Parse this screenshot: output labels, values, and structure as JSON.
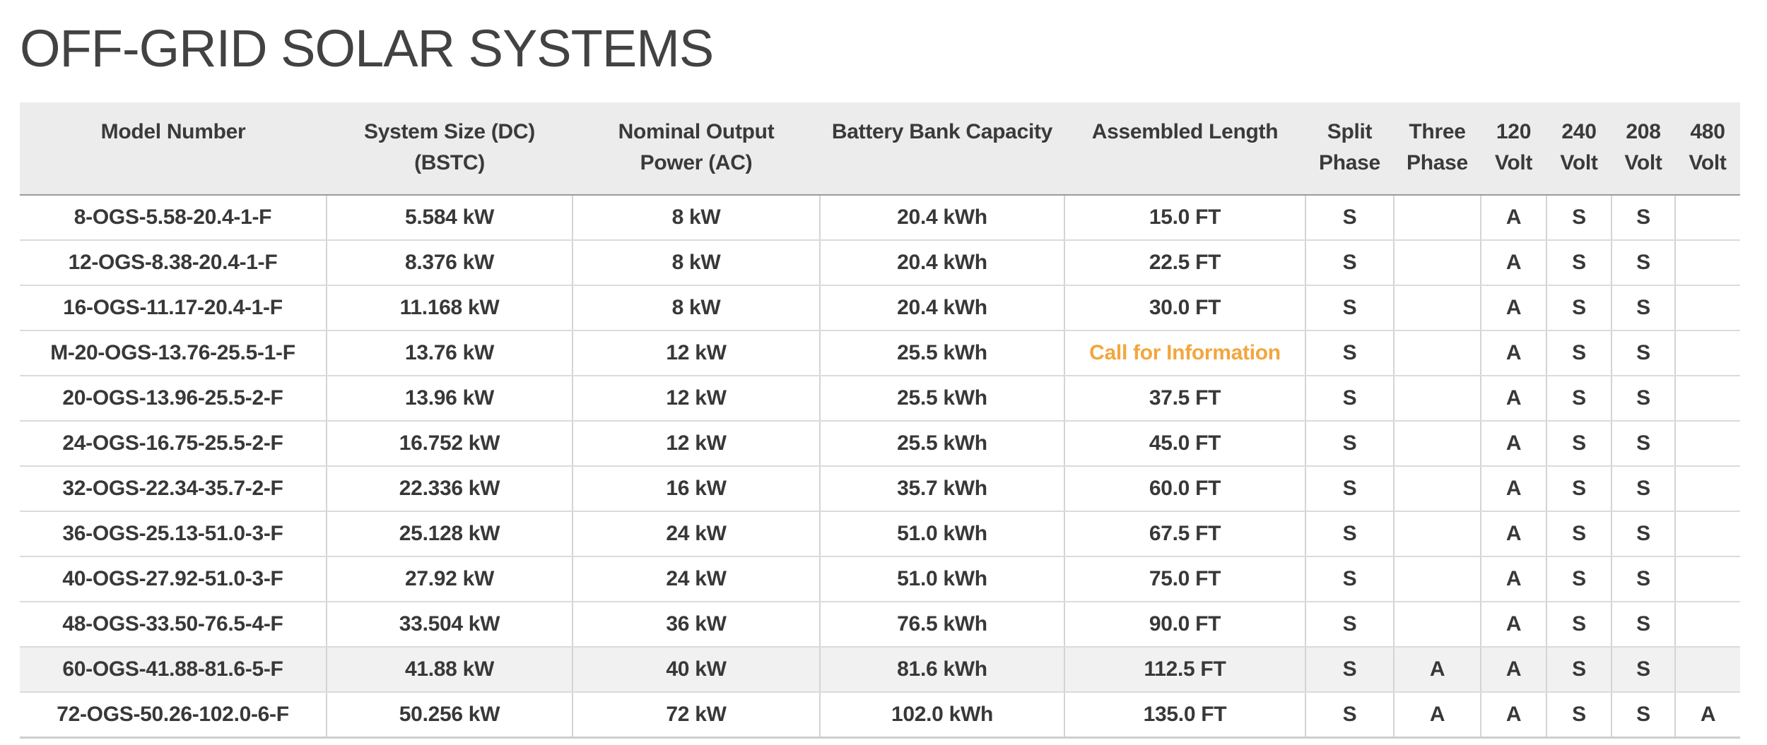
{
  "page": {
    "title": "OFF-GRID SOLAR SYSTEMS"
  },
  "colors": {
    "accent_orange": "#F3A63D",
    "header_bg": "#ECECEC",
    "highlight_row_bg": "#F1F1F1"
  },
  "table": {
    "columns": [
      {
        "key": "model",
        "label": "Model Number",
        "lines": [
          "Model Number"
        ]
      },
      {
        "key": "system_size",
        "label": "System Size (DC) (BSTC)",
        "lines": [
          "System Size (DC)",
          "(BSTC)"
        ]
      },
      {
        "key": "output_power",
        "label": "Nominal Output Power (AC)",
        "lines": [
          "Nominal Output",
          "Power (AC)"
        ]
      },
      {
        "key": "battery",
        "label": "Battery Bank Capacity",
        "lines": [
          "Battery Bank Capacity"
        ]
      },
      {
        "key": "length",
        "label": "Assembled Length",
        "lines": [
          "Assembled Length"
        ]
      },
      {
        "key": "split_phase",
        "label": "Split Phase",
        "lines": [
          "Split",
          "Phase"
        ]
      },
      {
        "key": "three_phase",
        "label": "Three Phase",
        "lines": [
          "Three",
          "Phase"
        ]
      },
      {
        "key": "volt_120",
        "label": "120 Volt",
        "lines": [
          "120",
          "Volt"
        ]
      },
      {
        "key": "volt_240",
        "label": "240 Volt",
        "lines": [
          "240",
          "Volt"
        ]
      },
      {
        "key": "volt_208",
        "label": "208 Volt",
        "lines": [
          "208",
          "Volt"
        ]
      },
      {
        "key": "volt_480",
        "label": "480 Volt",
        "lines": [
          "480",
          "Volt"
        ]
      }
    ],
    "rows": [
      {
        "model": "8-OGS-5.58-20.4-1-F",
        "system_size": "5.584 kW",
        "output_power": "8 kW",
        "battery": "20.4 kWh",
        "length": "15.0 FT",
        "length_accent": false,
        "split_phase": "S",
        "three_phase": "",
        "volt_120": "A",
        "volt_240": "S",
        "volt_208": "S",
        "volt_480": "",
        "highlighted": false
      },
      {
        "model": "12-OGS-8.38-20.4-1-F",
        "system_size": "8.376 kW",
        "output_power": "8 kW",
        "battery": "20.4 kWh",
        "length": "22.5 FT",
        "length_accent": false,
        "split_phase": "S",
        "three_phase": "",
        "volt_120": "A",
        "volt_240": "S",
        "volt_208": "S",
        "volt_480": "",
        "highlighted": false
      },
      {
        "model": "16-OGS-11.17-20.4-1-F",
        "system_size": "11.168 kW",
        "output_power": "8 kW",
        "battery": "20.4 kWh",
        "length": "30.0 FT",
        "length_accent": false,
        "split_phase": "S",
        "three_phase": "",
        "volt_120": "A",
        "volt_240": "S",
        "volt_208": "S",
        "volt_480": "",
        "highlighted": false
      },
      {
        "model": "M-20-OGS-13.76-25.5-1-F",
        "system_size": "13.76 kW",
        "output_power": "12 kW",
        "battery": "25.5 kWh",
        "length": "Call for Information",
        "length_accent": true,
        "split_phase": "S",
        "three_phase": "",
        "volt_120": "A",
        "volt_240": "S",
        "volt_208": "S",
        "volt_480": "",
        "highlighted": false
      },
      {
        "model": "20-OGS-13.96-25.5-2-F",
        "system_size": "13.96 kW",
        "output_power": "12 kW",
        "battery": "25.5 kWh",
        "length": "37.5 FT",
        "length_accent": false,
        "split_phase": "S",
        "three_phase": "",
        "volt_120": "A",
        "volt_240": "S",
        "volt_208": "S",
        "volt_480": "",
        "highlighted": false
      },
      {
        "model": "24-OGS-16.75-25.5-2-F",
        "system_size": "16.752 kW",
        "output_power": "12 kW",
        "battery": "25.5 kWh",
        "length": "45.0 FT",
        "length_accent": false,
        "split_phase": "S",
        "three_phase": "",
        "volt_120": "A",
        "volt_240": "S",
        "volt_208": "S",
        "volt_480": "",
        "highlighted": false
      },
      {
        "model": "32-OGS-22.34-35.7-2-F",
        "system_size": "22.336 kW",
        "output_power": "16 kW",
        "battery": "35.7 kWh",
        "length": "60.0 FT",
        "length_accent": false,
        "split_phase": "S",
        "three_phase": "",
        "volt_120": "A",
        "volt_240": "S",
        "volt_208": "S",
        "volt_480": "",
        "highlighted": false
      },
      {
        "model": "36-OGS-25.13-51.0-3-F",
        "system_size": "25.128 kW",
        "output_power": "24 kW",
        "battery": "51.0 kWh",
        "length": "67.5 FT",
        "length_accent": false,
        "split_phase": "S",
        "three_phase": "",
        "volt_120": "A",
        "volt_240": "S",
        "volt_208": "S",
        "volt_480": "",
        "highlighted": false
      },
      {
        "model": "40-OGS-27.92-51.0-3-F",
        "system_size": "27.92 kW",
        "output_power": "24 kW",
        "battery": "51.0 kWh",
        "length": "75.0 FT",
        "length_accent": false,
        "split_phase": "S",
        "three_phase": "",
        "volt_120": "A",
        "volt_240": "S",
        "volt_208": "S",
        "volt_480": "",
        "highlighted": false
      },
      {
        "model": "48-OGS-33.50-76.5-4-F",
        "system_size": "33.504 kW",
        "output_power": "36 kW",
        "battery": "76.5 kWh",
        "length": "90.0 FT",
        "length_accent": false,
        "split_phase": "S",
        "three_phase": "",
        "volt_120": "A",
        "volt_240": "S",
        "volt_208": "S",
        "volt_480": "",
        "highlighted": false
      },
      {
        "model": "60-OGS-41.88-81.6-5-F",
        "system_size": "41.88 kW",
        "output_power": "40 kW",
        "battery": "81.6 kWh",
        "length": "112.5 FT",
        "length_accent": false,
        "split_phase": "S",
        "three_phase": "A",
        "volt_120": "A",
        "volt_240": "S",
        "volt_208": "S",
        "volt_480": "",
        "highlighted": true
      },
      {
        "model": "72-OGS-50.26-102.0-6-F",
        "system_size": "50.256 kW",
        "output_power": "72 kW",
        "battery": "102.0 kWh",
        "length": "135.0 FT",
        "length_accent": false,
        "split_phase": "S",
        "three_phase": "A",
        "volt_120": "A",
        "volt_240": "S",
        "volt_208": "S",
        "volt_480": "A",
        "highlighted": false
      }
    ]
  }
}
